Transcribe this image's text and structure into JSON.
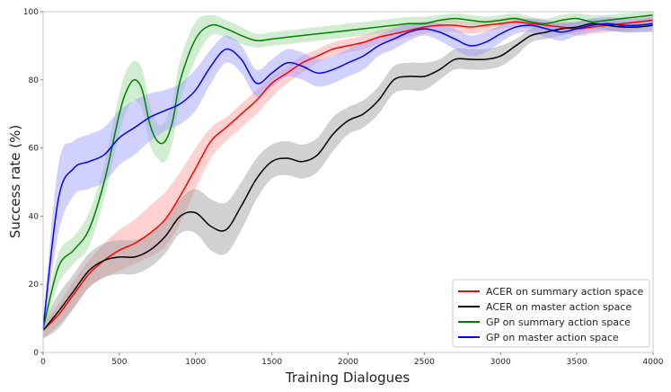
{
  "chart_data": {
    "type": "line",
    "title": "",
    "xlabel": "Training Dialogues",
    "ylabel": "Success rate (%)",
    "xlim": [
      0,
      4000
    ],
    "ylim": [
      0,
      100
    ],
    "xticks": [
      0,
      500,
      1000,
      1500,
      2000,
      2500,
      3000,
      3500,
      4000
    ],
    "yticks": [
      0,
      20,
      40,
      60,
      80,
      100
    ],
    "grid": false,
    "legend_position": "bottom-right",
    "series": [
      {
        "name": "ACER on summary action space",
        "color": "#ff0000",
        "band_color": "#ff9999",
        "x": [
          0,
          100,
          200,
          300,
          400,
          500,
          600,
          700,
          800,
          900,
          1000,
          1100,
          1200,
          1300,
          1400,
          1500,
          1600,
          1700,
          1800,
          1900,
          2000,
          2100,
          2200,
          2300,
          2400,
          2500,
          2600,
          2700,
          2800,
          2900,
          3000,
          3100,
          3200,
          3300,
          3400,
          3500,
          3600,
          3700,
          3800,
          3900,
          4000
        ],
        "values": [
          6.5,
          11,
          17,
          23,
          27,
          30,
          32,
          35,
          39,
          46,
          54,
          62,
          66,
          70,
          74,
          79,
          82,
          85,
          87,
          89,
          90,
          91,
          92.5,
          93.5,
          94.5,
          95.5,
          96,
          96,
          95.5,
          96,
          96.5,
          97,
          96.5,
          96,
          95.5,
          95,
          95.5,
          96,
          96.5,
          97,
          97.5
        ],
        "upper": [
          9,
          14,
          21,
          27,
          32,
          36,
          39,
          43,
          47,
          53,
          60,
          66,
          69,
          73,
          77,
          81,
          84,
          87,
          89,
          91,
          92,
          93,
          94.5,
          95.5,
          96.5,
          97,
          97.5,
          97.5,
          97,
          97.5,
          98,
          98.5,
          98,
          97.5,
          97,
          97,
          97.5,
          98,
          98.5,
          98.5,
          99
        ],
        "lower": [
          4,
          8,
          13,
          19,
          22,
          24,
          26,
          28,
          31,
          38,
          48,
          57,
          62,
          66,
          70,
          75,
          79,
          82,
          85,
          87,
          88,
          89,
          90.5,
          91.5,
          92.5,
          93.5,
          94,
          94,
          93.5,
          94,
          95,
          95.5,
          95,
          94.5,
          94,
          93,
          93.5,
          94,
          94.5,
          95,
          96
        ]
      },
      {
        "name": "ACER on master action space",
        "color": "#000000",
        "band_color": "#999999",
        "x": [
          0,
          100,
          200,
          300,
          400,
          500,
          600,
          700,
          800,
          900,
          1000,
          1100,
          1200,
          1300,
          1400,
          1500,
          1600,
          1700,
          1800,
          1900,
          2000,
          2100,
          2200,
          2300,
          2400,
          2500,
          2600,
          2700,
          2800,
          2900,
          3000,
          3100,
          3200,
          3300,
          3400,
          3500,
          3600,
          3700,
          3800,
          3900,
          4000
        ],
        "values": [
          6.5,
          12,
          18,
          24,
          27,
          28,
          28,
          30,
          34,
          40,
          41,
          37,
          36,
          43,
          51,
          56,
          57,
          56,
          58,
          64,
          68,
          70,
          74,
          80,
          81,
          81,
          83,
          86,
          86,
          86,
          87,
          90,
          93,
          94,
          95,
          95.5,
          96.5,
          96,
          95.5,
          95.5,
          96
        ],
        "upper": [
          9,
          17,
          23,
          29,
          32,
          33,
          33,
          35,
          39,
          45,
          48,
          45,
          44,
          50,
          57,
          61,
          62,
          61,
          63,
          69,
          72,
          74,
          78,
          84,
          85,
          85,
          86,
          89,
          89,
          89,
          90,
          92,
          95,
          96,
          97,
          97,
          98,
          97.5,
          97,
          97,
          98
        ],
        "lower": [
          4,
          7,
          13,
          19,
          22,
          23,
          23,
          25,
          29,
          35,
          35,
          30,
          29,
          36,
          45,
          51,
          52,
          51,
          53,
          59,
          64,
          66,
          70,
          76,
          77,
          77,
          80,
          83,
          83,
          83,
          84,
          87,
          91,
          92,
          93,
          94,
          95,
          94.5,
          94,
          94,
          94
        ]
      },
      {
        "name": "GP on summary action space",
        "color": "#008000",
        "band_color": "#99d699",
        "x": [
          0,
          100,
          200,
          300,
          400,
          500,
          550,
          600,
          650,
          700,
          750,
          800,
          850,
          900,
          1000,
          1100,
          1200,
          1300,
          1400,
          1500,
          1600,
          1700,
          1800,
          1900,
          2000,
          2100,
          2200,
          2300,
          2400,
          2500,
          2600,
          2700,
          2800,
          2900,
          3000,
          3100,
          3200,
          3300,
          3400,
          3500,
          3600,
          3700,
          3800,
          3900,
          4000
        ],
        "values": [
          7,
          25,
          30,
          36,
          50,
          70,
          77,
          80,
          77,
          67,
          62,
          62,
          68,
          80,
          92,
          96,
          95,
          93,
          91.5,
          92,
          92.5,
          93,
          93.5,
          94,
          94.5,
          95,
          95.5,
          96,
          96.5,
          96.5,
          97.5,
          98,
          97.5,
          97,
          97.5,
          98,
          97,
          96.5,
          97.5,
          98,
          97,
          97.5,
          98,
          98.5,
          99
        ],
        "upper": [
          9,
          29,
          34,
          41,
          55,
          76,
          83,
          85.5,
          83,
          73,
          67,
          68,
          74,
          86,
          97,
          99,
          97.5,
          95.5,
          93.5,
          94,
          94.5,
          95,
          95.5,
          96,
          96.5,
          97,
          97.5,
          98,
          98.5,
          98.5,
          99,
          99.5,
          99,
          98.5,
          99,
          99.5,
          98.5,
          98,
          99,
          99.5,
          99,
          99,
          99.5,
          99.8,
          100
        ],
        "lower": [
          5,
          20,
          26,
          31,
          45,
          64,
          71,
          74,
          71,
          61,
          57,
          56,
          62,
          74,
          86,
          93,
          92.5,
          90.5,
          89.5,
          90,
          90.5,
          91,
          91.5,
          92,
          92.5,
          93,
          93.5,
          94,
          94.5,
          94.5,
          96,
          96.5,
          96,
          95.5,
          96,
          96.5,
          95.5,
          95,
          96,
          96.5,
          95.5,
          96,
          96.5,
          97,
          98
        ]
      },
      {
        "name": "GP on master action space",
        "color": "#0000ff",
        "band_color": "#9999ff",
        "x": [
          0,
          100,
          200,
          300,
          400,
          500,
          600,
          700,
          800,
          900,
          1000,
          1100,
          1200,
          1300,
          1400,
          1500,
          1600,
          1700,
          1800,
          1900,
          2000,
          2100,
          2200,
          2300,
          2400,
          2500,
          2600,
          2700,
          2800,
          2900,
          3000,
          3100,
          3200,
          3300,
          3400,
          3500,
          3600,
          3700,
          3800,
          3900,
          4000
        ],
        "values": [
          7,
          45,
          54,
          56,
          58,
          63,
          66,
          69,
          71,
          73,
          77,
          84,
          89,
          86,
          79,
          82,
          85,
          84,
          82,
          83,
          85,
          87,
          90,
          92,
          94,
          95,
          94,
          92,
          90,
          91,
          93.5,
          95.5,
          96,
          95,
          94,
          95,
          96,
          96.5,
          96,
          96,
          96.5
        ],
        "upper": [
          9,
          55,
          62,
          64,
          66,
          71,
          74,
          76,
          77,
          79,
          83,
          89,
          93,
          90,
          83,
          86,
          89,
          88,
          86,
          87,
          89,
          91,
          93,
          95,
          96.5,
          97,
          96.5,
          95,
          93,
          94,
          96,
          97.5,
          98,
          97.5,
          96.5,
          97,
          98,
          98.5,
          98,
          98,
          98.5
        ],
        "lower": [
          5,
          35,
          46,
          48,
          50,
          55,
          58,
          62,
          65,
          67,
          71,
          79,
          85,
          82,
          75,
          78,
          81,
          80,
          78,
          79,
          81,
          83,
          87,
          89,
          91.5,
          93,
          91.5,
          89,
          87,
          88,
          91,
          93.5,
          94,
          92.5,
          91.5,
          93,
          94,
          94.5,
          94,
          94,
          94.5
        ]
      }
    ]
  }
}
